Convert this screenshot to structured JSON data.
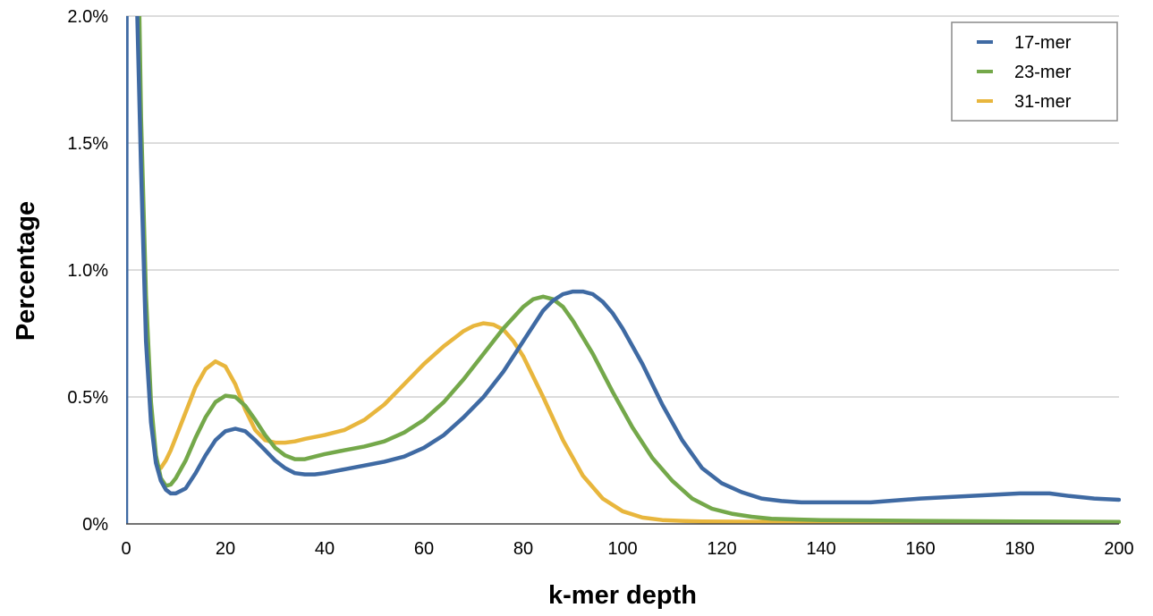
{
  "chart_data": {
    "type": "line",
    "title": "",
    "xlabel": "k-mer depth",
    "ylabel": "Percentage",
    "xlim": [
      0,
      200
    ],
    "ylim": [
      0,
      2.0
    ],
    "x_ticks": [
      0,
      20,
      40,
      60,
      80,
      100,
      120,
      140,
      160,
      180,
      200
    ],
    "x_tick_labels": [
      "0",
      "20",
      "40",
      "60",
      "80",
      "100",
      "120",
      "140",
      "160",
      "180",
      "200"
    ],
    "y_ticks": [
      0,
      0.5,
      1.0,
      1.5,
      2.0
    ],
    "y_tick_labels": [
      "0%",
      "0.5%",
      "1.0%",
      "1.5%",
      "2.0%"
    ],
    "grid": "horizontal",
    "legend_position": "top-right",
    "series": [
      {
        "name": "17-mer",
        "color": "#3f6aa3",
        "x": [
          0,
          0.1,
          2,
          3,
          4,
          5,
          6,
          7,
          8,
          9,
          10,
          12,
          14,
          16,
          18,
          20,
          22,
          24,
          26,
          28,
          30,
          32,
          34,
          36,
          38,
          40,
          44,
          48,
          52,
          56,
          60,
          64,
          68,
          72,
          76,
          80,
          84,
          86,
          88,
          90,
          92,
          94,
          96,
          98,
          100,
          104,
          108,
          112,
          116,
          120,
          124,
          128,
          132,
          136,
          140,
          150,
          160,
          170,
          180,
          186,
          190,
          195,
          200
        ],
        "y": [
          0,
          2.2,
          2.2,
          1.4,
          0.72,
          0.4,
          0.24,
          0.17,
          0.135,
          0.12,
          0.12,
          0.14,
          0.2,
          0.27,
          0.33,
          0.365,
          0.375,
          0.365,
          0.33,
          0.29,
          0.25,
          0.22,
          0.2,
          0.195,
          0.195,
          0.2,
          0.215,
          0.23,
          0.245,
          0.265,
          0.3,
          0.35,
          0.42,
          0.5,
          0.6,
          0.72,
          0.84,
          0.88,
          0.905,
          0.915,
          0.915,
          0.905,
          0.875,
          0.83,
          0.77,
          0.63,
          0.47,
          0.33,
          0.22,
          0.16,
          0.125,
          0.1,
          0.09,
          0.085,
          0.085,
          0.085,
          0.1,
          0.11,
          0.12,
          0.12,
          0.11,
          0.1,
          0.095
        ]
      },
      {
        "name": "23-mer",
        "color": "#74a84a",
        "x": [
          2,
          2.5,
          3,
          4,
          5,
          6,
          7,
          8,
          9,
          10,
          12,
          14,
          16,
          18,
          20,
          22,
          24,
          26,
          28,
          30,
          32,
          34,
          36,
          38,
          40,
          44,
          48,
          52,
          56,
          60,
          64,
          68,
          72,
          76,
          80,
          82,
          84,
          86,
          88,
          90,
          94,
          98,
          102,
          106,
          110,
          114,
          118,
          122,
          126,
          130,
          140,
          160,
          180,
          200
        ],
        "y": [
          2.2,
          2.2,
          1.6,
          0.9,
          0.48,
          0.27,
          0.18,
          0.15,
          0.155,
          0.18,
          0.25,
          0.34,
          0.42,
          0.48,
          0.505,
          0.5,
          0.465,
          0.41,
          0.35,
          0.3,
          0.27,
          0.255,
          0.255,
          0.265,
          0.275,
          0.29,
          0.305,
          0.325,
          0.36,
          0.41,
          0.48,
          0.57,
          0.67,
          0.77,
          0.855,
          0.885,
          0.895,
          0.885,
          0.855,
          0.8,
          0.67,
          0.52,
          0.38,
          0.26,
          0.17,
          0.1,
          0.06,
          0.04,
          0.028,
          0.02,
          0.015,
          0.012,
          0.01,
          0.008
        ]
      },
      {
        "name": "31-mer",
        "color": "#e8b63d",
        "x": [
          7,
          8,
          9,
          10,
          12,
          14,
          16,
          18,
          20,
          22,
          24,
          26,
          28,
          30,
          32,
          34,
          36,
          40,
          44,
          48,
          52,
          56,
          60,
          64,
          68,
          70,
          72,
          74,
          76,
          78,
          80,
          84,
          88,
          92,
          96,
          100,
          104,
          108,
          112,
          116,
          120,
          130,
          140,
          160,
          180,
          200
        ],
        "y": [
          0.22,
          0.25,
          0.29,
          0.34,
          0.44,
          0.54,
          0.61,
          0.64,
          0.62,
          0.55,
          0.45,
          0.37,
          0.33,
          0.32,
          0.32,
          0.325,
          0.335,
          0.35,
          0.37,
          0.41,
          0.47,
          0.55,
          0.63,
          0.7,
          0.76,
          0.78,
          0.79,
          0.785,
          0.765,
          0.72,
          0.66,
          0.5,
          0.33,
          0.19,
          0.1,
          0.05,
          0.025,
          0.015,
          0.012,
          0.01,
          0.009,
          0.008,
          0.008,
          0.008,
          0.008,
          0.008
        ]
      }
    ]
  }
}
